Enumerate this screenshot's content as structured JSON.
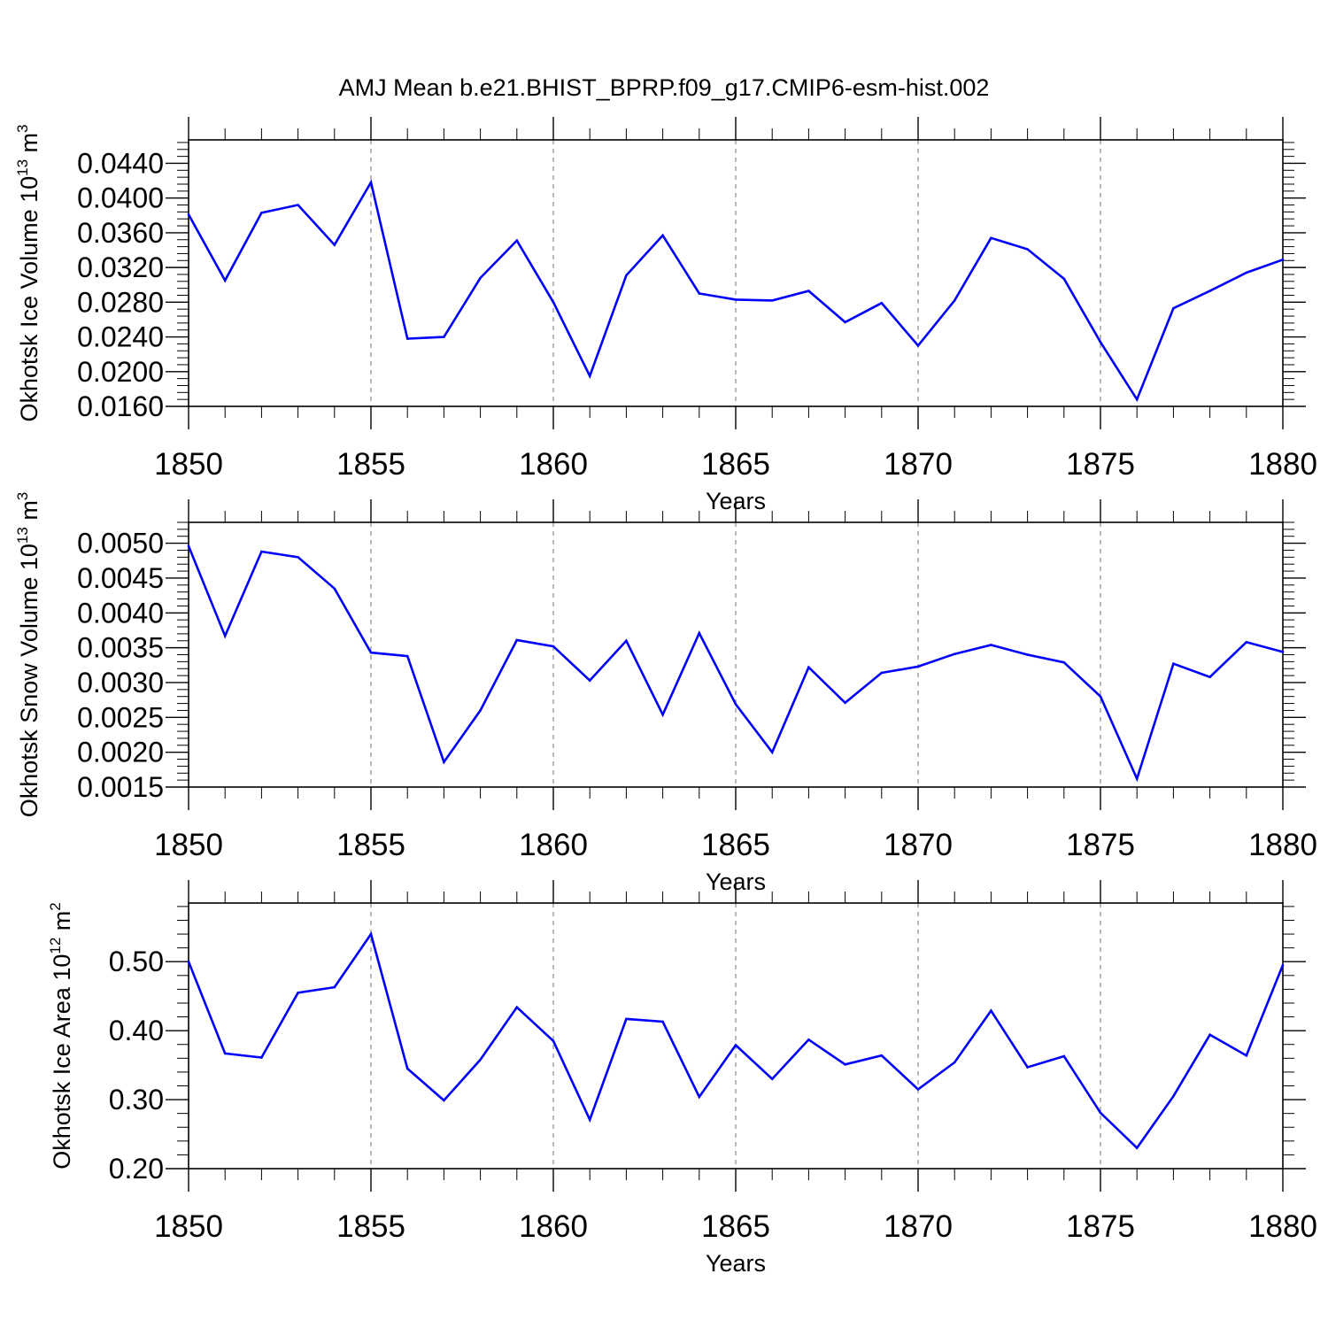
{
  "title": "AMJ Mean b.e21.BHIST_BPRP.f09_g17.CMIP6-esm-hist.002",
  "colors": {
    "line": "#0000ff",
    "axis": "#000000",
    "grid": "#888888",
    "background": "#ffffff"
  },
  "chart_data": [
    {
      "type": "line",
      "ylabel": {
        "text": "Okhotsk Ice Volume 10",
        "exp": "13",
        "unit": "m",
        "unit_exp": "3"
      },
      "xlabel": "Years",
      "xlim": [
        1850,
        1880
      ],
      "ylim": [
        0.016,
        0.0467
      ],
      "yticks": [
        0.016,
        0.02,
        0.024,
        0.028,
        0.032,
        0.036,
        0.04,
        0.044
      ],
      "ytick_labels": [
        "0.0160",
        "0.0200",
        "0.0240",
        "0.0280",
        "0.0320",
        "0.0360",
        "0.0400",
        "0.0440"
      ],
      "ytick_minor_step": 0.0008,
      "xticks": [
        1850,
        1855,
        1860,
        1865,
        1870,
        1875,
        1880
      ],
      "xtick_labels": [
        "1850",
        "1855",
        "1860",
        "1865",
        "1870",
        "1875",
        "1880"
      ],
      "x": [
        1850,
        1851,
        1852,
        1853,
        1854,
        1855,
        1856,
        1857,
        1858,
        1859,
        1860,
        1861,
        1862,
        1863,
        1864,
        1865,
        1866,
        1867,
        1868,
        1869,
        1870,
        1871,
        1872,
        1873,
        1874,
        1875,
        1876,
        1877,
        1878,
        1879,
        1880
      ],
      "values": [
        0.0381,
        0.0305,
        0.0383,
        0.0392,
        0.0346,
        0.0418,
        0.0238,
        0.024,
        0.0308,
        0.0351,
        0.028,
        0.0195,
        0.0311,
        0.0357,
        0.029,
        0.0283,
        0.0282,
        0.0293,
        0.0257,
        0.0279,
        0.023,
        0.0282,
        0.0354,
        0.0341,
        0.0307,
        0.0234,
        0.0168,
        0.0273,
        0.0293,
        0.0314,
        0.0329
      ]
    },
    {
      "type": "line",
      "ylabel": {
        "text": "Okhotsk Snow Volume 10",
        "exp": "13",
        "unit": "m",
        "unit_exp": "3"
      },
      "xlabel": "Years",
      "xlim": [
        1850,
        1880
      ],
      "ylim": [
        0.0015,
        0.0053
      ],
      "yticks": [
        0.0015,
        0.002,
        0.0025,
        0.003,
        0.0035,
        0.004,
        0.0045,
        0.005
      ],
      "ytick_labels": [
        "0.0015",
        "0.0020",
        "0.0025",
        "0.0030",
        "0.0035",
        "0.0040",
        "0.0045",
        "0.0050"
      ],
      "ytick_minor_step": 0.0001,
      "xticks": [
        1850,
        1855,
        1860,
        1865,
        1870,
        1875,
        1880
      ],
      "xtick_labels": [
        "1850",
        "1855",
        "1860",
        "1865",
        "1870",
        "1875",
        "1880"
      ],
      "x": [
        1850,
        1851,
        1852,
        1853,
        1854,
        1855,
        1856,
        1857,
        1858,
        1859,
        1860,
        1861,
        1862,
        1863,
        1864,
        1865,
        1866,
        1867,
        1868,
        1869,
        1870,
        1871,
        1872,
        1873,
        1874,
        1875,
        1876,
        1877,
        1878,
        1879,
        1880
      ],
      "values": [
        0.00496,
        0.00367,
        0.00488,
        0.0048,
        0.00435,
        0.00343,
        0.00338,
        0.00186,
        0.0026,
        0.00361,
        0.00352,
        0.00303,
        0.0036,
        0.00254,
        0.00371,
        0.00269,
        0.002,
        0.00322,
        0.00271,
        0.00314,
        0.00323,
        0.00341,
        0.00354,
        0.0034,
        0.00329,
        0.0028,
        0.00162,
        0.00327,
        0.00308,
        0.00358,
        0.00344
      ]
    },
    {
      "type": "line",
      "ylabel": {
        "text": "Okhotsk Ice Area 10",
        "exp": "12",
        "unit": "m",
        "unit_exp": "2"
      },
      "xlabel": "Years",
      "xlim": [
        1850,
        1880
      ],
      "ylim": [
        0.2,
        0.585
      ],
      "yticks": [
        0.2,
        0.3,
        0.4,
        0.5
      ],
      "ytick_labels": [
        "0.20",
        "0.30",
        "0.40",
        "0.50"
      ],
      "ytick_minor_step": 0.02,
      "xticks": [
        1850,
        1855,
        1860,
        1865,
        1870,
        1875,
        1880
      ],
      "xtick_labels": [
        "1850",
        "1855",
        "1860",
        "1865",
        "1870",
        "1875",
        "1880"
      ],
      "x": [
        1850,
        1851,
        1852,
        1853,
        1854,
        1855,
        1856,
        1857,
        1858,
        1859,
        1860,
        1861,
        1862,
        1863,
        1864,
        1865,
        1866,
        1867,
        1868,
        1869,
        1870,
        1871,
        1872,
        1873,
        1874,
        1875,
        1876,
        1877,
        1878,
        1879,
        1880
      ],
      "values": [
        0.5,
        0.367,
        0.361,
        0.455,
        0.463,
        0.54,
        0.345,
        0.299,
        0.358,
        0.434,
        0.385,
        0.271,
        0.417,
        0.413,
        0.304,
        0.379,
        0.33,
        0.387,
        0.351,
        0.364,
        0.315,
        0.354,
        0.429,
        0.347,
        0.363,
        0.281,
        0.23,
        0.305,
        0.394,
        0.364,
        0.495
      ]
    }
  ]
}
